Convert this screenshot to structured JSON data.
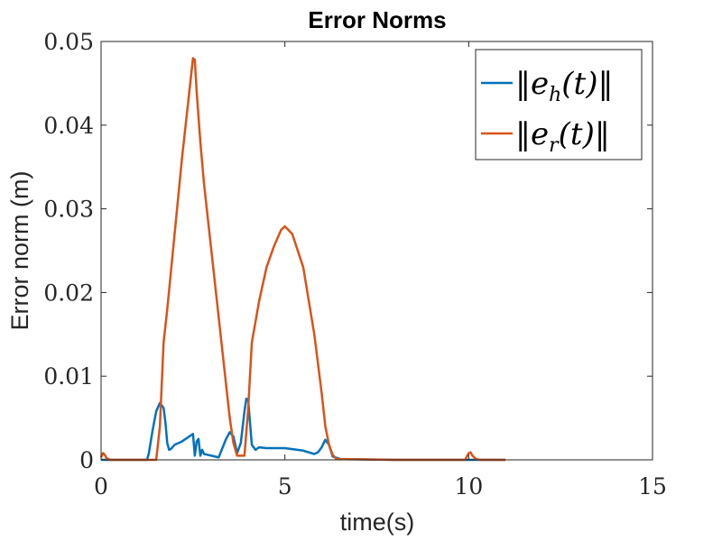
{
  "chart_data": {
    "type": "line",
    "title": "Error Norms",
    "xlabel": "time(s)",
    "ylabel": "Error norm (m)",
    "xlim": [
      0,
      15
    ],
    "ylim": [
      0,
      0.05
    ],
    "xticks": [
      0,
      5,
      10,
      15
    ],
    "yticks": [
      0,
      0.01,
      0.02,
      0.03,
      0.04,
      0.05
    ],
    "xtick_labels": [
      "0",
      "5",
      "10",
      "15"
    ],
    "ytick_labels": [
      "0",
      "0.01",
      "0.02",
      "0.03",
      "0.04",
      "0.05"
    ],
    "grid": false,
    "legend_position": "top-right",
    "series": [
      {
        "name": "||e_h(t)||",
        "color": "#0072BD",
        "x": [
          0,
          1.25,
          1.3,
          1.4,
          1.5,
          1.6,
          1.7,
          1.75,
          1.8,
          1.85,
          1.9,
          2.0,
          2.2,
          2.4,
          2.5,
          2.55,
          2.6,
          2.65,
          2.7,
          2.75,
          2.8,
          2.9,
          3.0,
          3.2,
          3.4,
          3.5,
          3.6,
          3.7,
          3.8,
          3.9,
          3.95,
          4.0,
          4.1,
          4.2,
          4.3,
          4.5,
          5.0,
          5.5,
          5.8,
          5.9,
          6.0,
          6.1,
          6.2,
          6.3,
          6.5,
          8.0,
          10.0,
          11.0
        ],
        "y": [
          0,
          0,
          0.0008,
          0.0035,
          0.0058,
          0.0068,
          0.0062,
          0.0045,
          0.002,
          0.0012,
          0.0013,
          0.0018,
          0.0022,
          0.0028,
          0.0031,
          0.0005,
          0.0022,
          0.0025,
          0.0005,
          0.0012,
          0.0007,
          0.0006,
          0.0005,
          0.0003,
          0.0025,
          0.0033,
          0.0028,
          0.0008,
          0.002,
          0.0058,
          0.0073,
          0.0072,
          0.0018,
          0.0012,
          0.0015,
          0.0014,
          0.0014,
          0.0011,
          0.0007,
          0.0009,
          0.0015,
          0.0024,
          0.0018,
          0.0004,
          0.0001,
          0,
          0,
          0
        ]
      },
      {
        "name": "||e_r(t)||",
        "color": "#D95319",
        "x": [
          0,
          0.05,
          0.1,
          0.15,
          0.25,
          0.3,
          1.5,
          1.6,
          1.7,
          1.8,
          2.0,
          2.2,
          2.4,
          2.5,
          2.55,
          2.6,
          2.7,
          2.75,
          2.8,
          3.0,
          3.2,
          3.4,
          3.5,
          3.6,
          3.7,
          3.8,
          3.9,
          4.0,
          4.1,
          4.3,
          4.5,
          4.7,
          4.9,
          5.0,
          5.2,
          5.5,
          5.8,
          6.0,
          6.1,
          6.2,
          6.3,
          6.4,
          8.0,
          9.9,
          10.0,
          10.05,
          10.1,
          10.2,
          10.3,
          11.0
        ],
        "y": [
          0.0003,
          0.0008,
          0.0006,
          0.0002,
          0,
          0,
          0,
          0.004,
          0.014,
          0.018,
          0.027,
          0.036,
          0.044,
          0.048,
          0.0478,
          0.044,
          0.038,
          0.0355,
          0.033,
          0.025,
          0.017,
          0.009,
          0.005,
          0.002,
          0.0005,
          0.0005,
          0.0005,
          0.006,
          0.014,
          0.019,
          0.023,
          0.0255,
          0.0275,
          0.0279,
          0.027,
          0.023,
          0.015,
          0.008,
          0.004,
          0.0018,
          0.0006,
          0.0001,
          0,
          0,
          0.0008,
          0.0009,
          0.0005,
          0.0001,
          0,
          0
        ]
      }
    ]
  }
}
